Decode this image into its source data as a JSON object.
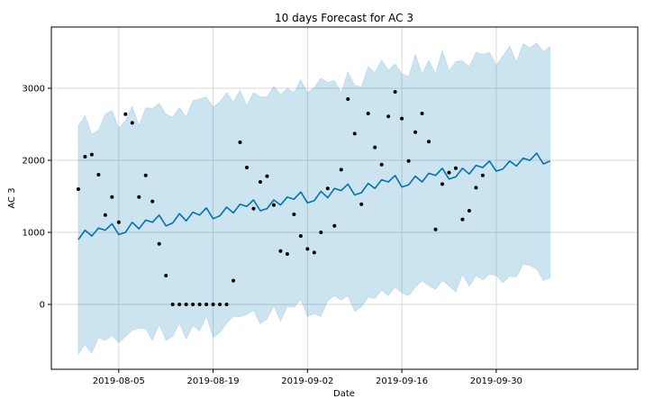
{
  "chart_data": {
    "type": "line",
    "title": "10 days Forecast for AC 3",
    "xlabel": "Date",
    "ylabel": "AC 3",
    "x_start": "2019-07-30",
    "x_ticks": [
      "2019-08-05",
      "2019-08-19",
      "2019-09-02",
      "2019-09-16",
      "2019-09-30"
    ],
    "xlim": [
      "2019-07-26",
      "2019-10-21"
    ],
    "y_ticks": [
      0,
      1000,
      2000,
      3000
    ],
    "ylim": [
      -900,
      3850
    ],
    "grid": true,
    "colors": {
      "forecast_line": "#0072B2",
      "interval_fill": "#0072B2",
      "observed_points": "#000000",
      "grid": "#d9d9d9"
    },
    "series": [
      {
        "type": "scatter",
        "values": [
          1600,
          2050,
          2080,
          1800,
          1240,
          1490,
          1140,
          2640,
          2520,
          1490,
          1790,
          1430,
          840,
          400,
          0,
          0,
          0,
          0,
          0,
          0,
          0,
          0,
          0,
          330,
          2250,
          1900,
          1330,
          1700,
          1780,
          1380,
          740,
          700,
          1250,
          950,
          770,
          720,
          1000,
          1610,
          1090,
          1870,
          2850,
          2370,
          1390,
          2650,
          2180,
          1940,
          2610,
          2950,
          2580,
          1990,
          2390,
          2650,
          2260,
          1040,
          1670,
          1830,
          1890,
          1180,
          1300,
          1620,
          1790
        ]
      },
      {
        "type": "line",
        "values": [
          900,
          1030,
          950,
          1060,
          1030,
          1120,
          970,
          1000,
          1140,
          1050,
          1170,
          1140,
          1240,
          1090,
          1130,
          1260,
          1160,
          1280,
          1240,
          1340,
          1190,
          1230,
          1350,
          1270,
          1390,
          1360,
          1450,
          1300,
          1330,
          1450,
          1380,
          1490,
          1460,
          1560,
          1410,
          1440,
          1570,
          1480,
          1610,
          1580,
          1670,
          1520,
          1550,
          1680,
          1610,
          1730,
          1700,
          1790,
          1630,
          1660,
          1780,
          1700,
          1820,
          1790,
          1890,
          1740,
          1770,
          1890,
          1810,
          1930,
          1900,
          1990,
          1850,
          1880,
          1990,
          1920,
          2030,
          2000,
          2100,
          1950,
          1990
        ]
      },
      {
        "type": "area",
        "upper": [
          2480,
          2620,
          2360,
          2420,
          2640,
          2690,
          2450,
          2550,
          2750,
          2480,
          2730,
          2720,
          2790,
          2640,
          2600,
          2730,
          2600,
          2830,
          2850,
          2880,
          2740,
          2810,
          2940,
          2810,
          2970,
          2760,
          2940,
          2880,
          2880,
          3030,
          2910,
          3000,
          2940,
          3120,
          2940,
          3010,
          3140,
          3080,
          3110,
          2940,
          3230,
          3040,
          3020,
          3300,
          3220,
          3390,
          3250,
          3340,
          3200,
          3160,
          3470,
          3200,
          3390,
          3200,
          3530,
          3240,
          3370,
          3380,
          3300,
          3500,
          3470,
          3500,
          3320,
          3450,
          3590,
          3360,
          3620,
          3560,
          3630,
          3510,
          3580
        ],
        "lower": [
          -690,
          -560,
          -680,
          -460,
          -500,
          -430,
          -530,
          -450,
          -360,
          -330,
          -340,
          -500,
          -280,
          -500,
          -440,
          -260,
          -480,
          -290,
          -370,
          -160,
          -460,
          -390,
          -260,
          -170,
          -170,
          -140,
          -80,
          -270,
          -200,
          -20,
          -230,
          -30,
          -40,
          70,
          -170,
          -130,
          -170,
          50,
          120,
          60,
          120,
          -100,
          -30,
          100,
          80,
          200,
          120,
          240,
          160,
          120,
          240,
          330,
          260,
          210,
          330,
          260,
          170,
          420,
          250,
          400,
          340,
          420,
          400,
          300,
          390,
          380,
          560,
          540,
          490,
          330,
          370
        ]
      }
    ]
  }
}
